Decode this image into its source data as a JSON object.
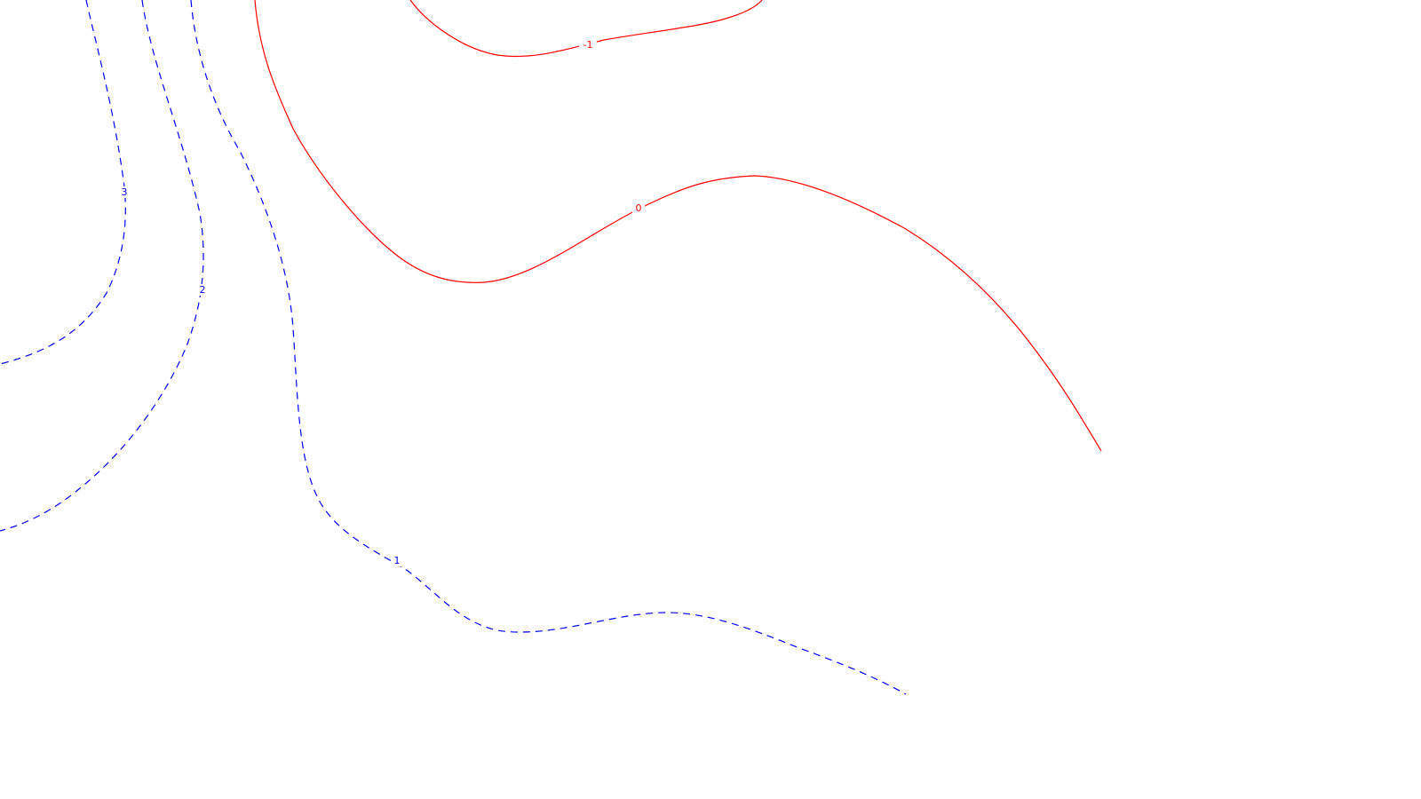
{
  "contour_map": {
    "background": "#ffffff",
    "levels": [
      {
        "level": -1,
        "label": "-1",
        "color": "#ff0000",
        "style": "solid"
      },
      {
        "level": 0,
        "label": "0",
        "color": "#ff0000",
        "style": "solid"
      },
      {
        "level": 1,
        "label": "1",
        "color": "#0000ff",
        "style": "dashed"
      },
      {
        "level": 2,
        "label": "2",
        "color": "#0000ff",
        "style": "dashed"
      },
      {
        "level": 3,
        "label": "3",
        "color": "#0000ff",
        "style": "dashed"
      }
    ]
  }
}
